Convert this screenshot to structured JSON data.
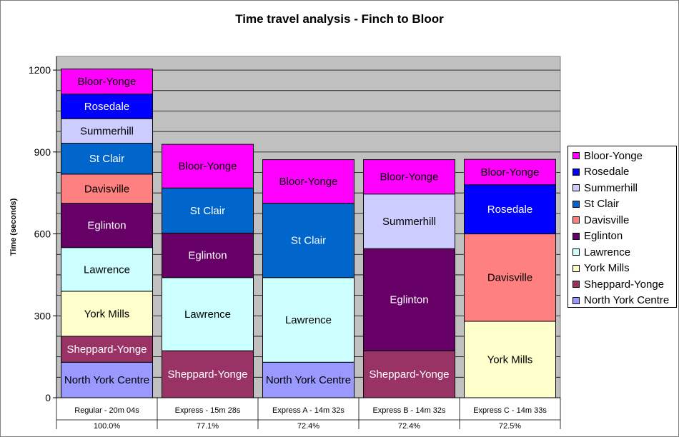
{
  "chart_data": {
    "type": "bar",
    "stacked": true,
    "title": "Time travel analysis - Finch to Bloor",
    "ylabel": "Time (seconds)",
    "ylim": [
      0,
      1200
    ],
    "yticks": [
      "0",
      "300",
      "600",
      "900",
      "1200"
    ],
    "grid": true,
    "legend_position": "right",
    "categories": [
      "Regular - 20m 04s",
      "Express - 15m 28s",
      "Express A - 14m 32s",
      "Express B - 14m 32s",
      "Express C - 14m 33s"
    ],
    "category_percentages": [
      "100.0%",
      "77.1%",
      "72.4%",
      "72.4%",
      "72.5%"
    ],
    "series": [
      {
        "name": "North York Centre",
        "color": "#9999ff",
        "values": [
          130,
          0,
          130,
          0,
          0
        ]
      },
      {
        "name": "Sheppard-Yonge",
        "color": "#993366",
        "values": [
          95,
          172,
          0,
          172,
          0
        ]
      },
      {
        "name": "York Mills",
        "color": "#ffffcc",
        "values": [
          165,
          0,
          0,
          0,
          280
        ]
      },
      {
        "name": "Lawrence",
        "color": "#ccffff",
        "values": [
          160,
          268,
          310,
          0,
          0
        ]
      },
      {
        "name": "Eglinton",
        "color": "#660066",
        "values": [
          162,
          163,
          0,
          374,
          0
        ]
      },
      {
        "name": "Davisville",
        "color": "#ff8080",
        "values": [
          107,
          0,
          0,
          0,
          320
        ]
      },
      {
        "name": "St Clair",
        "color": "#0066cc",
        "values": [
          113,
          165,
          272,
          0,
          0
        ]
      },
      {
        "name": "Summerhill",
        "color": "#ccccff",
        "values": [
          90,
          0,
          0,
          200,
          0
        ]
      },
      {
        "name": "Rosedale",
        "color": "#0000ff",
        "values": [
          90,
          0,
          0,
          0,
          180
        ]
      },
      {
        "name": "Bloor-Yonge",
        "color": "#ff00ff",
        "values": [
          92,
          160,
          160,
          126,
          93
        ]
      }
    ],
    "label_colors": {
      "#660066": "#ffffff",
      "#0066cc": "#ffffff",
      "#993366": "#ffffff",
      "#0000ff": "#ffffff"
    }
  }
}
